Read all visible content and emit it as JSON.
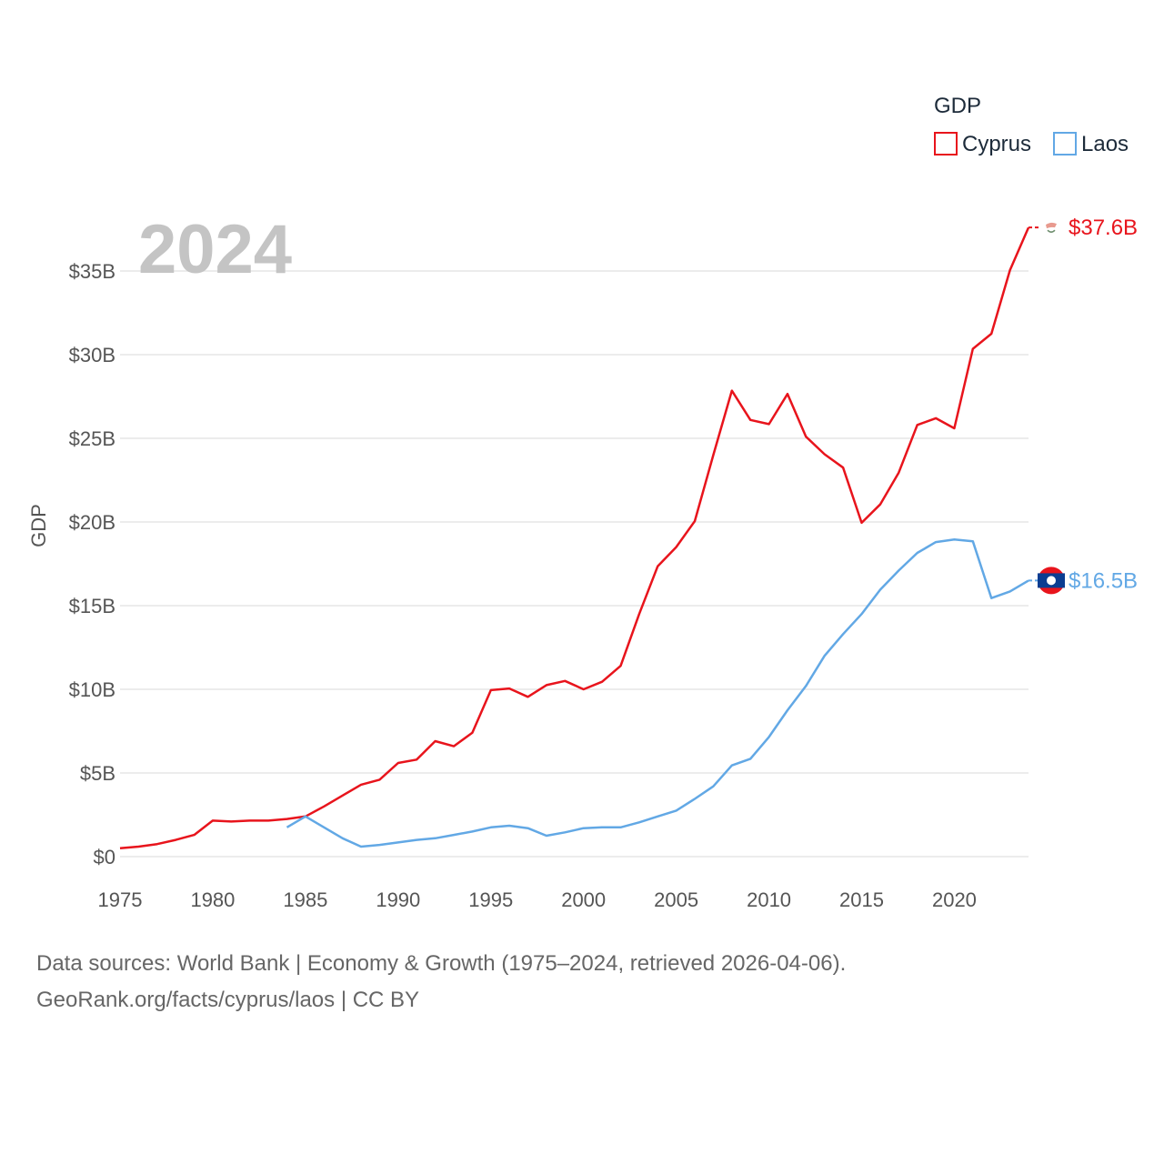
{
  "chart_data": {
    "type": "line",
    "title": "",
    "ylabel": "GDP",
    "xlabel": "",
    "year_label": "2024",
    "legend_title": "GDP",
    "legend_position": "top-right",
    "xlim": [
      1975,
      2024
    ],
    "ylim": [
      0,
      35
    ],
    "x_ticks": [
      1975,
      1980,
      1985,
      1990,
      1995,
      2000,
      2005,
      2010,
      2015,
      2020
    ],
    "x_tick_labels": [
      "1975",
      "1980",
      "1985",
      "1990",
      "1995",
      "2000",
      "2005",
      "2010",
      "2015",
      "2020"
    ],
    "y_ticks": [
      0,
      5,
      10,
      15,
      20,
      25,
      30,
      35
    ],
    "y_tick_labels": [
      "$0",
      "$5B",
      "$10B",
      "$15B",
      "$20B",
      "$25B",
      "$30B",
      "$35B"
    ],
    "units": "billion USD",
    "series": [
      {
        "name": "Cyprus",
        "color": "#e8141c",
        "end_label": "$37.6B",
        "x": [
          1975,
          1976,
          1977,
          1978,
          1979,
          1980,
          1981,
          1982,
          1983,
          1984,
          1985,
          1986,
          1987,
          1988,
          1989,
          1990,
          1991,
          1992,
          1993,
          1994,
          1995,
          1996,
          1997,
          1998,
          1999,
          2000,
          2001,
          2002,
          2003,
          2004,
          2005,
          2006,
          2007,
          2008,
          2009,
          2010,
          2011,
          2012,
          2013,
          2014,
          2015,
          2016,
          2017,
          2018,
          2019,
          2020,
          2021,
          2022,
          2023,
          2024
        ],
        "values": [
          0.5,
          0.6,
          0.75,
          1.0,
          1.3,
          2.15,
          2.1,
          2.15,
          2.15,
          2.25,
          2.4,
          3.0,
          3.65,
          4.3,
          4.6,
          5.6,
          5.8,
          6.9,
          6.6,
          7.4,
          9.95,
          10.05,
          9.55,
          10.25,
          10.5,
          10.0,
          10.45,
          11.4,
          14.5,
          17.35,
          18.5,
          20.05,
          24.0,
          27.85,
          26.1,
          25.85,
          27.65,
          25.1,
          24.05,
          23.25,
          19.95,
          21.05,
          22.95,
          25.8,
          26.2,
          25.6,
          30.35,
          31.25,
          35.05,
          37.6
        ]
      },
      {
        "name": "Laos",
        "color": "#62a8e5",
        "end_label": "$16.5B",
        "x": [
          1984,
          1985,
          1986,
          1987,
          1988,
          1989,
          1990,
          1991,
          1992,
          1993,
          1994,
          1995,
          1996,
          1997,
          1998,
          1999,
          2000,
          2001,
          2002,
          2003,
          2004,
          2005,
          2006,
          2007,
          2008,
          2009,
          2010,
          2011,
          2012,
          2013,
          2014,
          2015,
          2016,
          2017,
          2018,
          2019,
          2020,
          2021,
          2022,
          2023,
          2024
        ],
        "values": [
          1.75,
          2.4,
          1.75,
          1.1,
          0.6,
          0.7,
          0.85,
          1.0,
          1.1,
          1.3,
          1.5,
          1.75,
          1.85,
          1.7,
          1.25,
          1.45,
          1.7,
          1.75,
          1.75,
          2.05,
          2.4,
          2.75,
          3.45,
          4.2,
          5.45,
          5.85,
          7.15,
          8.75,
          10.2,
          12.0,
          13.3,
          14.5,
          15.95,
          17.1,
          18.15,
          18.8,
          18.95,
          18.85,
          15.45,
          15.85,
          16.5
        ]
      }
    ]
  },
  "footer": {
    "line1": "Data sources: World Bank | Economy & Growth (1975–2024, retrieved 2026-04-06).",
    "line2": "GeoRank.org/facts/cyprus/laos | CC BY"
  },
  "flags": {
    "cyprus": "cyprus-flag",
    "laos": "laos-flag"
  }
}
